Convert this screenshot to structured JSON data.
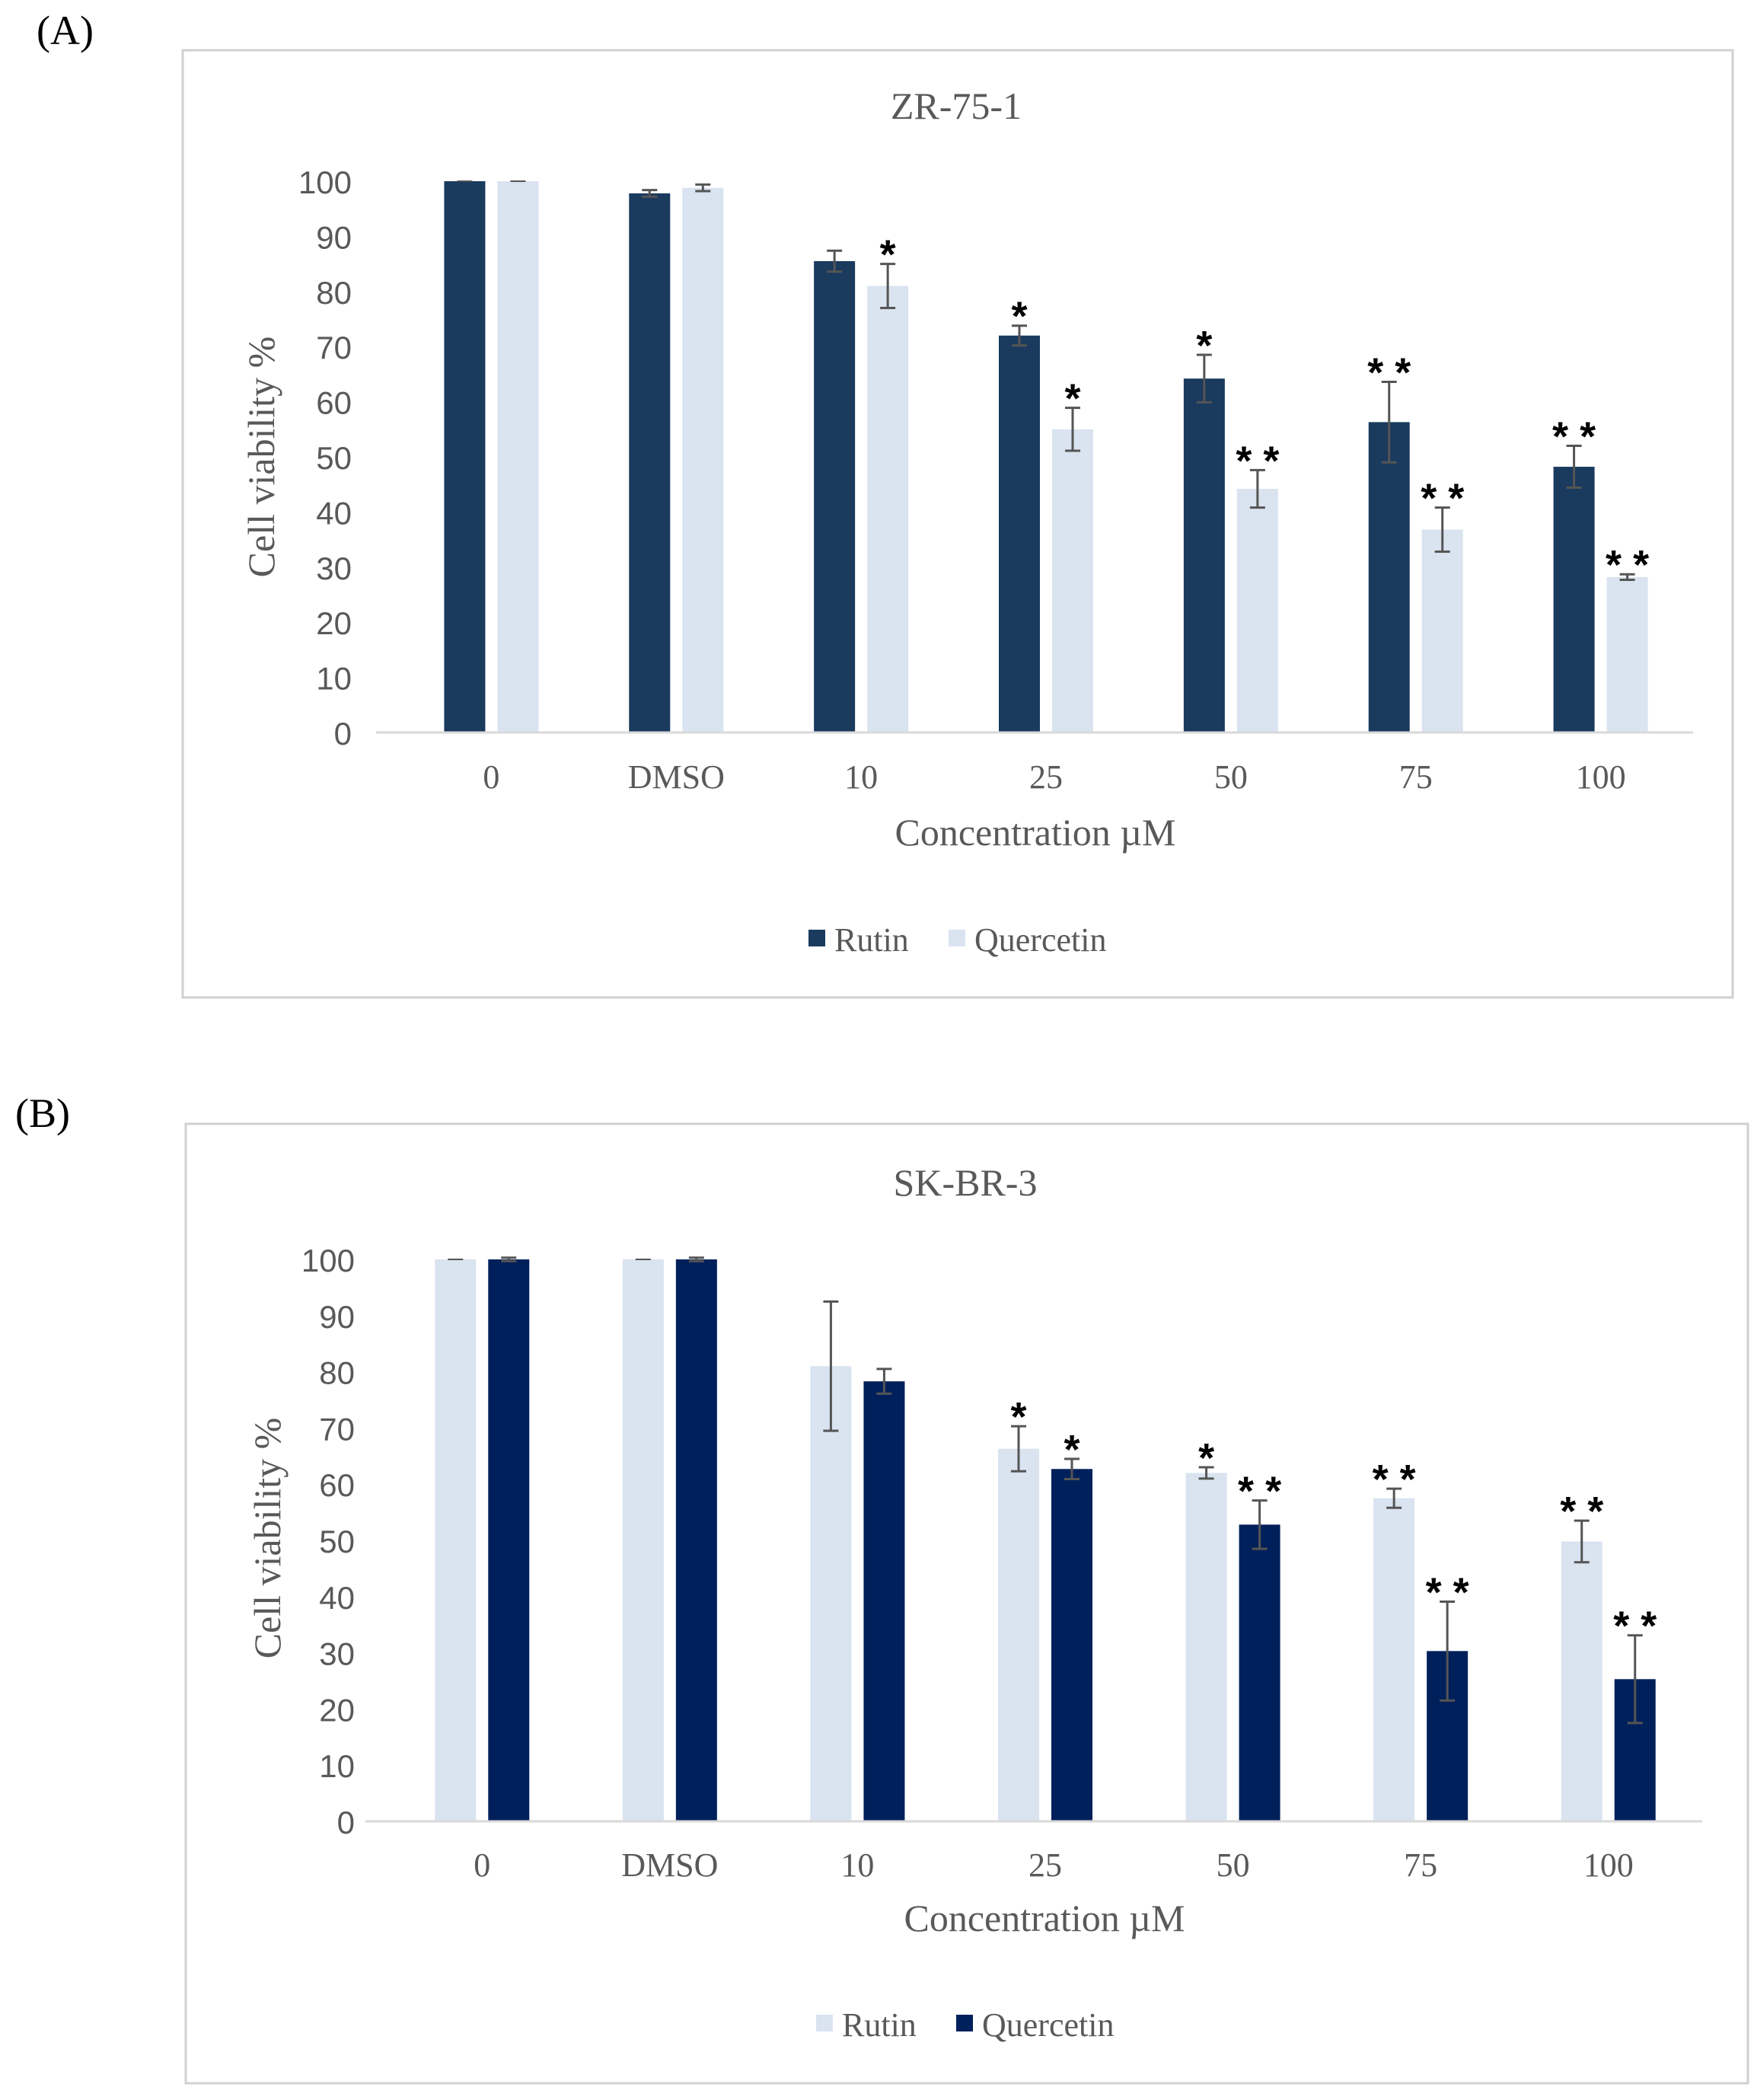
{
  "colors": {
    "dark": "#1a3a5e",
    "navy": "#00205b",
    "light": "#dae3f0",
    "axis": "#d9d9d9",
    "frame": "#d0d0d0",
    "text": "#595959",
    "error": "#555555",
    "star": "#000000"
  },
  "chart_data": [
    {
      "type": "bar",
      "panel_label": "(A)",
      "title": "ZR-75-1",
      "xlabel": "Concentration µM",
      "ylabel": "Cell viability %",
      "ylim": [
        0,
        100
      ],
      "yticks": [
        "0",
        "10",
        "20",
        "30",
        "40",
        "50",
        "60",
        "70",
        "80",
        "90",
        "100"
      ],
      "categories": [
        "0",
        "DMSO",
        "10",
        "25",
        "50",
        "75",
        "100"
      ],
      "legend_position": "bottom",
      "series": [
        {
          "name": "Rutin",
          "color_key": "dark",
          "values": [
            100,
            97.8,
            85.5,
            72,
            64.2,
            56.3,
            48.2
          ],
          "errors": [
            0,
            0.6,
            1.9,
            1.8,
            4.3,
            7.3,
            3.8
          ],
          "significance": [
            "",
            "",
            "",
            "*",
            "*",
            "* *",
            "* *"
          ]
        },
        {
          "name": "Quercetin",
          "color_key": "light",
          "values": [
            100,
            98.8,
            81,
            55,
            44.2,
            36.8,
            28.2
          ],
          "errors": [
            0,
            0.6,
            4,
            3.9,
            3.4,
            4,
            0.5
          ],
          "significance": [
            "",
            "",
            "*",
            "*",
            "* *",
            "* *",
            "* *"
          ]
        }
      ]
    },
    {
      "type": "bar",
      "panel_label": "(B)",
      "title": "SK-BR-3",
      "xlabel": "Concentration µM",
      "ylabel": "Cell viability %",
      "ylim": [
        0,
        100
      ],
      "yticks": [
        "0",
        "10",
        "20",
        "30",
        "40",
        "50",
        "60",
        "70",
        "80",
        "90",
        "100"
      ],
      "categories": [
        "0",
        "DMSO",
        "10",
        "25",
        "50",
        "75",
        "100"
      ],
      "legend_position": "bottom",
      "series": [
        {
          "name": "Rutin",
          "color_key": "light",
          "values": [
            100,
            100,
            81,
            66.3,
            62,
            57.5,
            49.8
          ],
          "errors": [
            0,
            0,
            11.5,
            4,
            1,
            1.7,
            3.7
          ],
          "significance": [
            "",
            "",
            "",
            "*",
            "*",
            "* *",
            "* *"
          ]
        },
        {
          "name": "Quercetin",
          "color_key": "navy",
          "values": [
            100,
            100,
            78.3,
            62.7,
            52.8,
            30.3,
            25.3
          ],
          "errors": [
            0.3,
            0.3,
            2.2,
            1.8,
            4.3,
            8.8,
            7.8
          ],
          "significance": [
            "",
            "",
            "",
            "*",
            "* *",
            "* *",
            "* *"
          ]
        }
      ]
    }
  ]
}
